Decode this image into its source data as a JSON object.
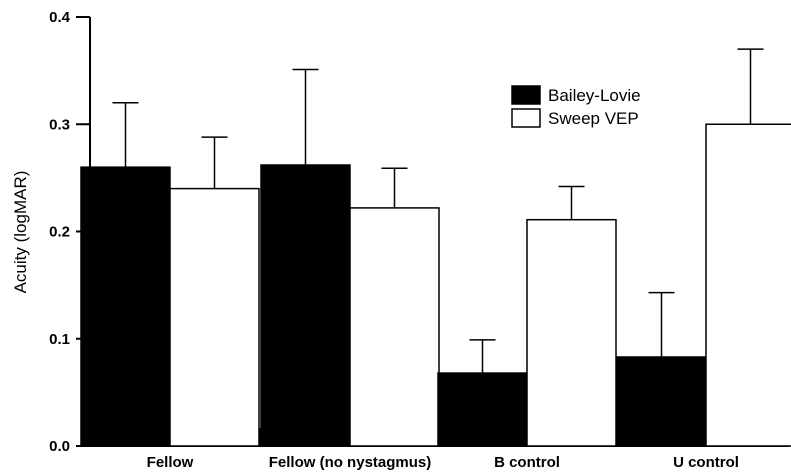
{
  "chart_data": {
    "type": "bar",
    "title": "",
    "xlabel": "",
    "ylabel": "Acuity (logMAR)",
    "ylim": [
      0,
      0.4
    ],
    "yticks": [
      "0.0",
      "0.1",
      "0.2",
      "0.3",
      "0.4"
    ],
    "categories": [
      "Fellow",
      "Fellow (no nystagmus)",
      "B control",
      "U control"
    ],
    "series": [
      {
        "name": "Bailey-Lovie",
        "color": "#000000",
        "values": [
          0.26,
          0.262,
          0.068,
          0.083
        ],
        "errors": [
          0.06,
          0.089,
          0.031,
          0.06
        ]
      },
      {
        "name": "Sweep VEP",
        "color": "#ffffff",
        "values": [
          0.24,
          0.222,
          0.211,
          0.3
        ],
        "errors": [
          0.048,
          0.037,
          0.031,
          0.07
        ]
      }
    ],
    "legend_position": "top-right",
    "grid": false
  }
}
